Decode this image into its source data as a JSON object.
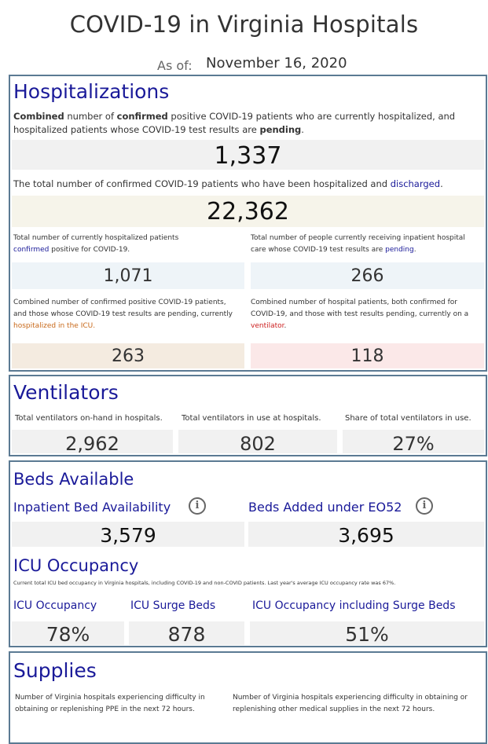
{
  "header": {
    "title": "COVID-19 in Virginia Hospitals",
    "as_of_label": "As of:",
    "as_of_date": "November 16, 2020"
  },
  "hospitalizations": {
    "heading": "Hospitalizations",
    "combined_desc": {
      "p1": "Combined",
      "p2": " number of ",
      "p3": "confirmed",
      "p4": " positive COVID-19 patients who are currently hospitalized, and",
      "p5": "hospitalized patients whose COVID-19 test results are ",
      "p6": "pending",
      "p7": "."
    },
    "combined_value": "1,337",
    "discharged_desc": {
      "p1": "The total number of confirmed COVID-19 patients who have been hospitalized and ",
      "p2": "discharged",
      "p3": "."
    },
    "discharged_value": "22,362",
    "confirmed_desc": {
      "l1": "Total number of currently hospitalized patients",
      "l2a": "confirmed",
      "l2b": " positive for COVID-19."
    },
    "confirmed_value": "1,071",
    "pending_desc": {
      "l1": "Total number of people currently receiving inpatient hospital",
      "l2a": "care whose COVID-19 test results are ",
      "l2b": "pending",
      "l2c": "."
    },
    "pending_value": "266",
    "icu_desc": {
      "l1": "Combined number of confirmed positive COVID-19 patients,",
      "l2": "and those whose COVID-19 test results are pending, currently",
      "l3": "hospitalized in the ICU",
      "l3b": "."
    },
    "icu_value": "263",
    "vent_desc": {
      "l1": "Combined number of hospital patients, both confirmed for",
      "l2": "COVID-19, and those with test results pending, currently on a",
      "l3": "ventilator",
      "l3b": "."
    },
    "vent_value": "118"
  },
  "ventilators": {
    "heading": "Ventilators",
    "onhand_label": "Total ventilators on-hand in hospitals.",
    "onhand_value": "2,962",
    "inuse_label": "Total ventilators in use at hospitals.",
    "inuse_value": "802",
    "share_label": "Share of total ventilators in use.",
    "share_value": "27%"
  },
  "beds": {
    "heading": "Beds Available",
    "inpatient_label": "Inpatient Bed Availability",
    "inpatient_value": "3,579",
    "eo52_label": "Beds Added under EO52",
    "eo52_value": "3,695",
    "icu_heading": "ICU Occupancy",
    "icu_note": "Current total ICU bed occupancy in Virginia hospitals, including COVID-19 and non-COVID patients. Last year's average ICU occupancy rate was 67%.",
    "icu_occ_label": "ICU Occupancy",
    "icu_occ_value": "78%",
    "surge_label": "ICU Surge Beds",
    "surge_value": "878",
    "occ_surge_label": "ICU Occupancy including Surge Beds",
    "occ_surge_value": "51%",
    "info_icon_glyph": "i"
  },
  "supplies": {
    "heading": "Supplies",
    "ppe_desc_l1": "Number of Virginia hospitals experiencing difficulty in",
    "ppe_desc_l2": "obtaining or replenishing PPE in the next 72 hours.",
    "other_desc_l1": "Number of Virginia hospitals experiencing difficulty in obtaining or",
    "other_desc_l2": "replenishing other medical supplies in the next 72 hours."
  },
  "colors": {
    "heading_blue": "#1a1a99",
    "panel_border": "#5b7a93",
    "box_gray": "#f1f1f1",
    "box_cream": "#f6f4ea",
    "box_blue": "#eef4f8",
    "box_tan": "#f4ebe0",
    "box_pink": "#fbe8e8",
    "orange": "#c8691a",
    "red": "#cc1f1f"
  }
}
